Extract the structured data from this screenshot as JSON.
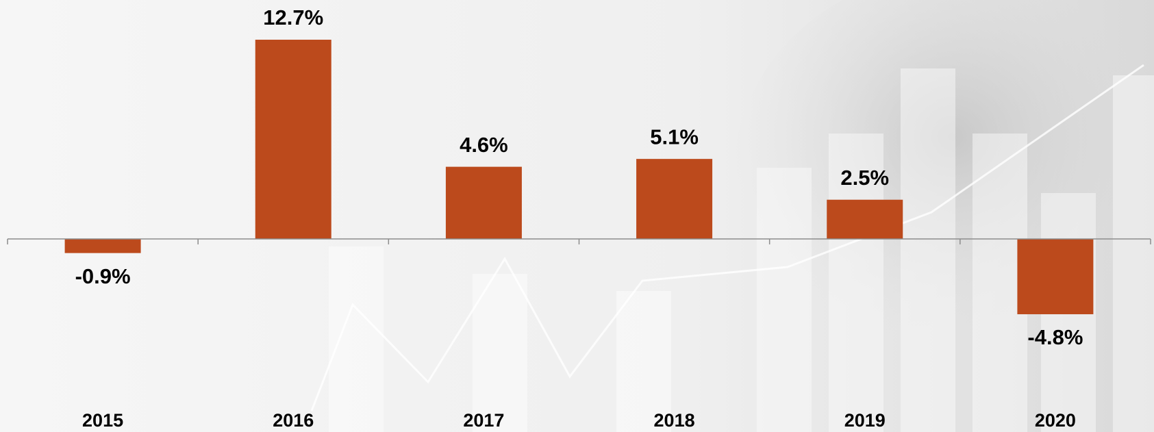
{
  "chart_data": {
    "type": "bar",
    "categories": [
      "2015",
      "2016",
      "2017",
      "2018",
      "2019",
      "2020"
    ],
    "values": [
      -0.9,
      12.7,
      4.6,
      5.1,
      2.5,
      -4.8
    ],
    "value_labels": [
      "-0.9%",
      "12.7%",
      "4.6%",
      "5.1%",
      "2.5%",
      "-4.8%"
    ],
    "color": "#bc4a1c"
  }
}
